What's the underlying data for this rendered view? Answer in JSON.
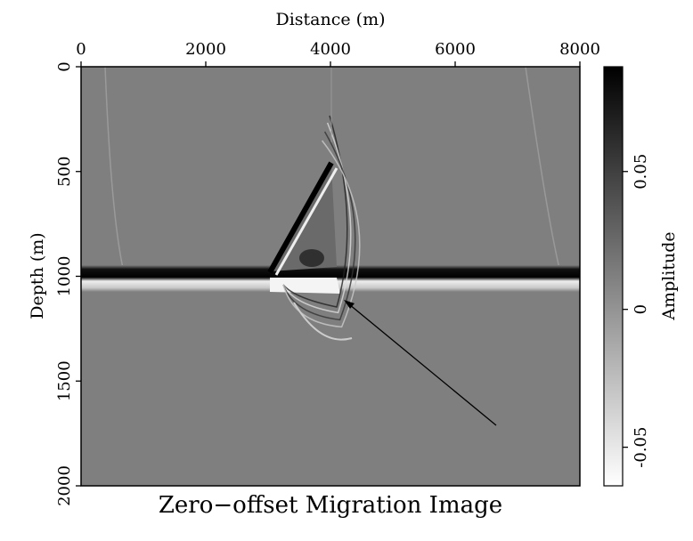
{
  "chart_data": {
    "type": "image",
    "title": "Zero−offset Migration Image",
    "x_label": "Distance (m)",
    "y_label": "Depth (m)",
    "xlim": [
      0,
      8000
    ],
    "xticks": [
      0,
      2000,
      4000,
      6000,
      8000
    ],
    "ylim": [
      0,
      2000
    ],
    "yticks": [
      0,
      500,
      1000,
      1500,
      2000
    ],
    "colorbar": {
      "label": "Amplitude",
      "lim": [
        -0.064,
        0.088
      ],
      "ticks": [
        -0.05,
        0,
        0.05
      ]
    }
  }
}
